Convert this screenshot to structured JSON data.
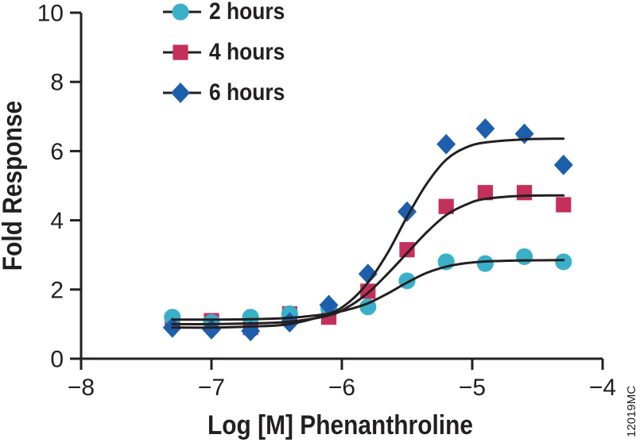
{
  "figure": {
    "watermark": "12019MC",
    "background": "#ffffff"
  },
  "chart_data": {
    "type": "scatter",
    "title": "",
    "xlabel": "Log [M] Phenanthroline",
    "ylabel": "Fold Response",
    "xlim": [
      -8,
      -4
    ],
    "ylim": [
      0,
      10
    ],
    "xticks": [
      -8,
      -7,
      -6,
      -5,
      -4
    ],
    "xtick_labels": [
      "−8",
      "−7",
      "−6",
      "−5",
      "−4"
    ],
    "yticks": [
      0,
      2,
      4,
      6,
      8,
      10
    ],
    "ytick_labels": [
      "0",
      "2",
      "4",
      "6",
      "8",
      "10"
    ],
    "grid": false,
    "legend_position": "top-left-inside",
    "axis_color": "#231f20",
    "curve_color": "#231f20",
    "x": [
      -7.3,
      -7.0,
      -6.7,
      -6.4,
      -6.1,
      -5.8,
      -5.5,
      -5.2,
      -4.9,
      -4.6,
      -4.3
    ],
    "series": [
      {
        "name": "2 hours",
        "marker": "circle",
        "color": "#3ab0c8",
        "values": [
          1.2,
          1.05,
          1.2,
          1.3,
          1.45,
          1.5,
          2.25,
          2.8,
          2.75,
          2.95,
          2.8
        ],
        "fit_curve": [
          [
            -7.3,
            1.13
          ],
          [
            -7.0,
            1.13
          ],
          [
            -6.7,
            1.14
          ],
          [
            -6.4,
            1.18
          ],
          [
            -6.1,
            1.3
          ],
          [
            -5.95,
            1.42
          ],
          [
            -5.8,
            1.6
          ],
          [
            -5.65,
            1.88
          ],
          [
            -5.5,
            2.2
          ],
          [
            -5.35,
            2.48
          ],
          [
            -5.2,
            2.66
          ],
          [
            -5.05,
            2.76
          ],
          [
            -4.9,
            2.81
          ],
          [
            -4.6,
            2.84
          ],
          [
            -4.3,
            2.85
          ]
        ]
      },
      {
        "name": "4 hours",
        "marker": "square",
        "color": "#c5305a",
        "values": [
          1.05,
          1.1,
          0.9,
          1.3,
          1.2,
          1.95,
          3.15,
          4.4,
          4.8,
          4.8,
          4.45
        ],
        "fit_curve": [
          [
            -7.3,
            1.0
          ],
          [
            -7.0,
            1.0
          ],
          [
            -6.7,
            1.02
          ],
          [
            -6.4,
            1.07
          ],
          [
            -6.1,
            1.25
          ],
          [
            -5.95,
            1.5
          ],
          [
            -5.8,
            1.9
          ],
          [
            -5.65,
            2.45
          ],
          [
            -5.5,
            3.05
          ],
          [
            -5.35,
            3.65
          ],
          [
            -5.2,
            4.15
          ],
          [
            -5.05,
            4.45
          ],
          [
            -4.9,
            4.62
          ],
          [
            -4.6,
            4.71
          ],
          [
            -4.3,
            4.72
          ]
        ]
      },
      {
        "name": "6 hours",
        "marker": "diamond",
        "color": "#1e5fad",
        "values": [
          0.9,
          0.85,
          0.8,
          1.05,
          1.55,
          2.45,
          4.25,
          6.2,
          6.65,
          6.5,
          5.6
        ],
        "fit_curve": [
          [
            -7.3,
            0.9
          ],
          [
            -7.0,
            0.9
          ],
          [
            -6.7,
            0.93
          ],
          [
            -6.4,
            1.0
          ],
          [
            -6.1,
            1.3
          ],
          [
            -5.95,
            1.62
          ],
          [
            -5.8,
            2.2
          ],
          [
            -5.65,
            3.05
          ],
          [
            -5.5,
            4.1
          ],
          [
            -5.35,
            5.05
          ],
          [
            -5.2,
            5.75
          ],
          [
            -5.05,
            6.1
          ],
          [
            -4.9,
            6.25
          ],
          [
            -4.6,
            6.34
          ],
          [
            -4.3,
            6.36
          ]
        ]
      }
    ]
  }
}
